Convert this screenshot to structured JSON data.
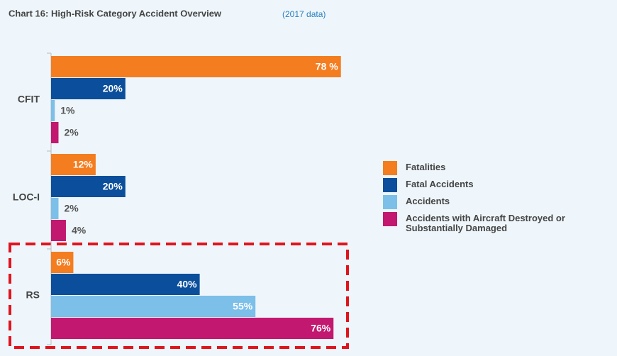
{
  "chart_data": {
    "type": "hbar",
    "title": "Chart 16: High-Risk Category Accident Overview",
    "annotation": "(2017 data)",
    "categories": [
      "CFIT",
      "LOC-I",
      "RS"
    ],
    "series": [
      {
        "name": "Fatalities",
        "color": "#f47d20",
        "values": [
          78,
          12,
          6
        ],
        "value_labels": [
          "78 %",
          "12%",
          "6%"
        ]
      },
      {
        "name": "Fatal Accidents",
        "color": "#0b4f9c",
        "values": [
          20,
          20,
          40
        ],
        "value_labels": [
          "20%",
          "20%",
          "40%"
        ]
      },
      {
        "name": "Accidents",
        "color": "#7cbfe8",
        "values": [
          1,
          2,
          55
        ],
        "value_labels": [
          "1%",
          "2%",
          "55%"
        ]
      },
      {
        "name": "Accidents with Aircraft Destroyed or Substantially Damaged",
        "color": "#c2186f",
        "values": [
          2,
          4,
          76
        ],
        "value_labels": [
          "2%",
          "4%",
          "76%"
        ]
      }
    ],
    "legend": "right"
  }
}
